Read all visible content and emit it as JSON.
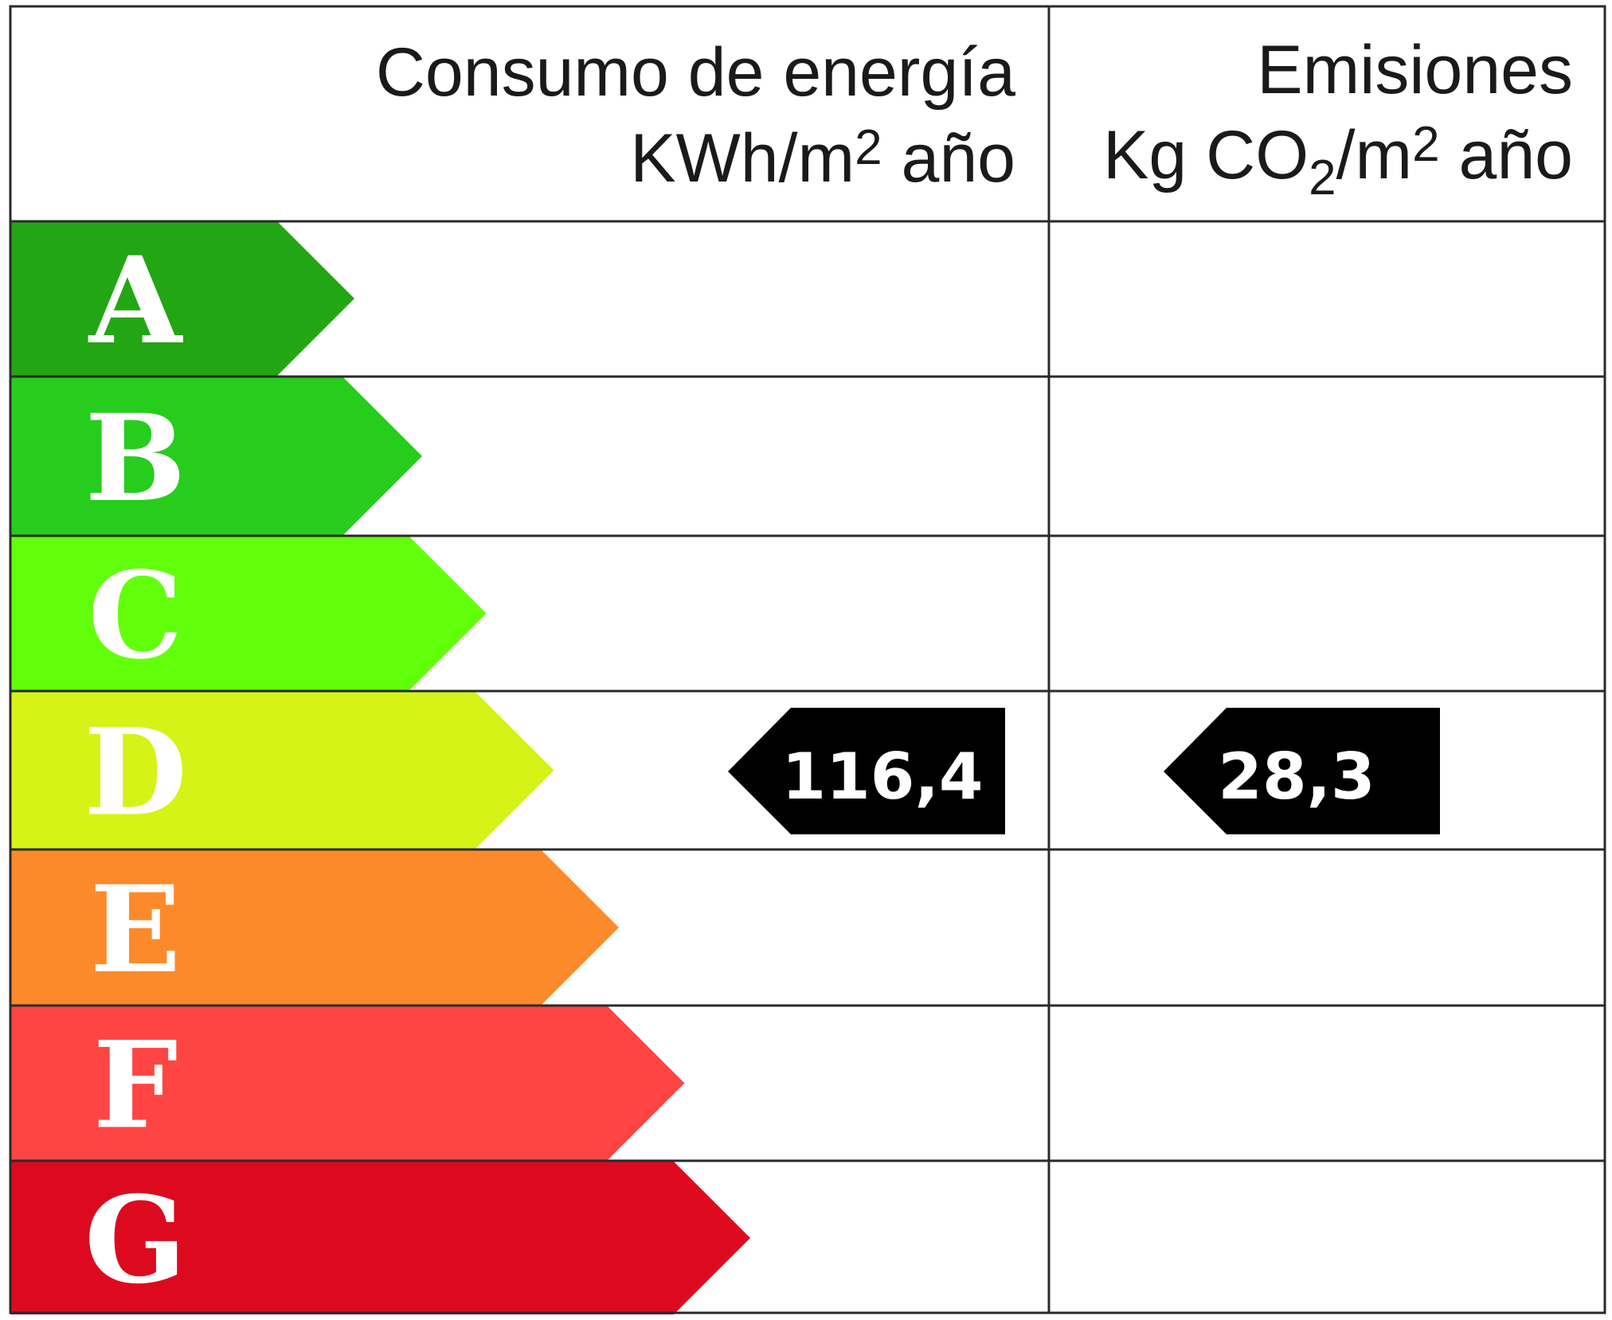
{
  "header": {
    "energy_title": "Consumo de energía",
    "energy_unit_pre": "KWh/m",
    "energy_unit_sup": "2",
    "energy_unit_post": " año",
    "emissions_title": "Emisiones",
    "emissions_unit_pre": "Kg CO",
    "emissions_unit_sub": "2",
    "emissions_unit_mid": "/m",
    "emissions_unit_sup": "2",
    "emissions_unit_post": " año"
  },
  "classes": [
    {
      "letter": "A",
      "color": "#22a614"
    },
    {
      "letter": "B",
      "color": "#27cd1d"
    },
    {
      "letter": "C",
      "color": "#62ff0a"
    },
    {
      "letter": "D",
      "color": "#d6f317"
    },
    {
      "letter": "E",
      "color": "#fd8a2a"
    },
    {
      "letter": "F",
      "color": "#fe4543"
    },
    {
      "letter": "G",
      "color": "#dd0a1f"
    }
  ],
  "rating": {
    "energy_value": "116,4",
    "emissions_value": "28,3",
    "class": "D",
    "marker_color": "#000000"
  }
}
